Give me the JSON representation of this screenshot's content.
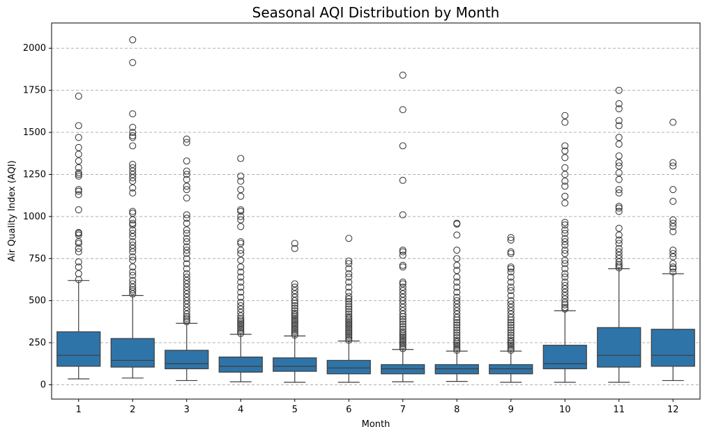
{
  "chart_data": {
    "type": "box",
    "title": "Seasonal AQI Distribution by Month",
    "xlabel": "Month",
    "ylabel": "Air Quality Index (AQI)",
    "ylim": [
      -85,
      2150
    ],
    "yticks": [
      0,
      250,
      500,
      750,
      1000,
      1250,
      1500,
      1750,
      2000
    ],
    "grid": "y-dashed",
    "box_color": "#2f74a8",
    "categories": [
      "1",
      "2",
      "3",
      "4",
      "5",
      "6",
      "7",
      "8",
      "9",
      "10",
      "11",
      "12"
    ],
    "boxes": [
      {
        "month": "1",
        "whisker_low": 35,
        "q1": 110,
        "median": 175,
        "q3": 315,
        "whisker_high": 620,
        "outliers": [
          625,
          660,
          700,
          730,
          790,
          810,
          840,
          850,
          890,
          900,
          905,
          1040,
          1130,
          1150,
          1160,
          1240,
          1250,
          1260,
          1290,
          1330,
          1370,
          1410,
          1470,
          1540,
          1715
        ]
      },
      {
        "month": "2",
        "whisker_low": 40,
        "q1": 105,
        "median": 145,
        "q3": 275,
        "whisker_high": 530,
        "outliers": [
          540,
          555,
          565,
          580,
          600,
          620,
          650,
          670,
          700,
          740,
          760,
          790,
          810,
          830,
          850,
          880,
          900,
          920,
          950,
          960,
          980,
          1020,
          1030,
          1140,
          1170,
          1210,
          1230,
          1250,
          1270,
          1290,
          1310,
          1420,
          1470,
          1480,
          1500,
          1530,
          1610,
          1915,
          2050
        ]
      },
      {
        "month": "3",
        "whisker_low": 25,
        "q1": 95,
        "median": 125,
        "q3": 205,
        "whisker_high": 365,
        "outliers": [
          375,
          385,
          395,
          405,
          420,
          440,
          460,
          480,
          500,
          520,
          540,
          560,
          580,
          600,
          620,
          640,
          660,
          690,
          720,
          750,
          780,
          800,
          820,
          850,
          870,
          900,
          920,
          960,
          990,
          1010,
          1110,
          1160,
          1180,
          1220,
          1250,
          1270,
          1330,
          1440,
          1460
        ]
      },
      {
        "month": "4",
        "whisker_low": 18,
        "q1": 75,
        "median": 110,
        "q3": 165,
        "whisker_high": 300,
        "outliers": [
          305,
          315,
          325,
          335,
          345,
          355,
          365,
          375,
          385,
          395,
          410,
          430,
          450,
          470,
          490,
          520,
          550,
          580,
          610,
          640,
          670,
          700,
          740,
          780,
          800,
          840,
          850,
          940,
          980,
          1000,
          1030,
          1040,
          1120,
          1160,
          1210,
          1240,
          1345
        ]
      },
      {
        "month": "5",
        "whisker_low": 15,
        "q1": 80,
        "median": 110,
        "q3": 160,
        "whisker_high": 290,
        "outliers": [
          295,
          305,
          315,
          325,
          335,
          345,
          355,
          365,
          375,
          385,
          395,
          405,
          415,
          425,
          440,
          455,
          470,
          485,
          500,
          520,
          540,
          560,
          580,
          600,
          810,
          840
        ]
      },
      {
        "month": "6",
        "whisker_low": 15,
        "q1": 65,
        "median": 100,
        "q3": 145,
        "whisker_high": 260,
        "outliers": [
          265,
          275,
          285,
          295,
          305,
          315,
          325,
          335,
          345,
          355,
          365,
          375,
          385,
          395,
          405,
          420,
          435,
          450,
          465,
          480,
          495,
          510,
          525,
          550,
          580,
          610,
          640,
          660,
          690,
          720,
          735,
          870
        ]
      },
      {
        "month": "7",
        "whisker_low": 18,
        "q1": 65,
        "median": 95,
        "q3": 120,
        "whisker_high": 210,
        "outliers": [
          215,
          225,
          235,
          245,
          255,
          265,
          275,
          285,
          295,
          305,
          315,
          330,
          345,
          360,
          375,
          390,
          405,
          420,
          440,
          460,
          480,
          500,
          520,
          540,
          560,
          580,
          600,
          610,
          700,
          710,
          770,
          790,
          800,
          1010,
          1215,
          1420,
          1635,
          1840
        ]
      },
      {
        "month": "8",
        "whisker_low": 20,
        "q1": 65,
        "median": 95,
        "q3": 120,
        "whisker_high": 200,
        "outliers": [
          205,
          215,
          225,
          235,
          245,
          255,
          265,
          280,
          295,
          310,
          325,
          340,
          355,
          370,
          385,
          400,
          420,
          440,
          460,
          480,
          500,
          520,
          550,
          580,
          610,
          640,
          680,
          710,
          750,
          800,
          890,
          955,
          960
        ]
      },
      {
        "month": "9",
        "whisker_low": 15,
        "q1": 65,
        "median": 95,
        "q3": 120,
        "whisker_high": 200,
        "outliers": [
          205,
          215,
          225,
          235,
          245,
          255,
          265,
          280,
          295,
          310,
          325,
          340,
          355,
          370,
          385,
          400,
          420,
          440,
          460,
          480,
          500,
          530,
          560,
          580,
          610,
          640,
          670,
          690,
          700,
          780,
          790,
          860,
          875
        ]
      },
      {
        "month": "10",
        "whisker_low": 15,
        "q1": 95,
        "median": 125,
        "q3": 235,
        "whisker_high": 440,
        "outliers": [
          450,
          460,
          475,
          490,
          510,
          530,
          550,
          570,
          590,
          610,
          640,
          660,
          690,
          720,
          740,
          780,
          800,
          830,
          850,
          870,
          900,
          920,
          950,
          965,
          1080,
          1120,
          1180,
          1210,
          1250,
          1290,
          1350,
          1390,
          1420,
          1560,
          1600
        ]
      },
      {
        "month": "11",
        "whisker_low": 15,
        "q1": 105,
        "median": 175,
        "q3": 340,
        "whisker_high": 690,
        "outliers": [
          695,
          705,
          715,
          730,
          750,
          770,
          790,
          810,
          840,
          860,
          890,
          930,
          1030,
          1050,
          1060,
          1140,
          1160,
          1220,
          1260,
          1300,
          1320,
          1360,
          1430,
          1470,
          1540,
          1570,
          1640,
          1670,
          1750
        ]
      },
      {
        "month": "12",
        "whisker_low": 25,
        "q1": 110,
        "median": 175,
        "q3": 330,
        "whisker_high": 660,
        "outliers": [
          670,
          690,
          700,
          720,
          760,
          780,
          800,
          910,
          940,
          960,
          980,
          1090,
          1160,
          1300,
          1320,
          1560
        ]
      }
    ]
  }
}
